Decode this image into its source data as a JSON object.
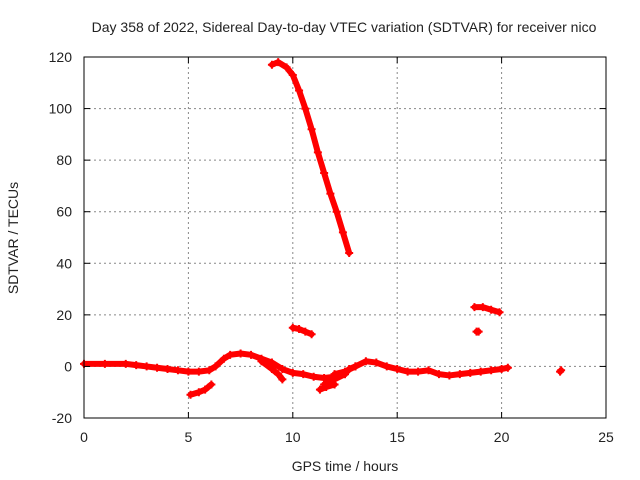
{
  "chart_data": {
    "type": "scatter",
    "title": "Day 358 of 2022, Sidereal Day-to-day VTEC variation (SDTVAR) for receiver nico",
    "xlabel": "GPS time / hours",
    "ylabel": "SDTVAR / TECUs",
    "xlim": [
      0,
      25
    ],
    "ylim": [
      -20,
      120
    ],
    "xticks": [
      0,
      5,
      10,
      15,
      20,
      25
    ],
    "yticks": [
      -20,
      0,
      20,
      40,
      60,
      80,
      100,
      120
    ],
    "grid": true,
    "marker": "+",
    "color": "#ff0000",
    "series": [
      {
        "name": "baseline",
        "segments": [
          [
            [
              0,
              1
            ],
            [
              1,
              1
            ],
            [
              2,
              1
            ],
            [
              2.5,
              0.5
            ],
            [
              3,
              0
            ],
            [
              3.5,
              -0.5
            ],
            [
              4,
              -1
            ],
            [
              4.5,
              -1.5
            ],
            [
              5,
              -2
            ],
            [
              5.5,
              -2
            ],
            [
              6,
              -1.5
            ],
            [
              6.3,
              0
            ],
            [
              6.7,
              3
            ],
            [
              7,
              4.5
            ],
            [
              7.5,
              5
            ],
            [
              8,
              4.5
            ],
            [
              8.5,
              3
            ],
            [
              9,
              1.5
            ],
            [
              9.5,
              -1
            ],
            [
              10,
              -2.5
            ],
            [
              10.5,
              -3
            ],
            [
              11,
              -4
            ],
            [
              11.5,
              -4.5
            ],
            [
              12,
              -4
            ],
            [
              12.5,
              -3
            ],
            [
              12.7,
              -1
            ],
            [
              13,
              0
            ],
            [
              13.5,
              2
            ],
            [
              14,
              1.5
            ],
            [
              14.5,
              0
            ],
            [
              15,
              -1
            ],
            [
              15.5,
              -2
            ],
            [
              16,
              -2
            ],
            [
              16.5,
              -1.5
            ],
            [
              17,
              -3
            ],
            [
              17.5,
              -3.5
            ],
            [
              18,
              -3
            ],
            [
              18.5,
              -2.5
            ],
            [
              19,
              -2
            ],
            [
              19.5,
              -1.5
            ],
            [
              20,
              -1
            ],
            [
              20.3,
              -0.5
            ]
          ]
        ]
      },
      {
        "name": "dips",
        "segments": [
          [
            [
              8.5,
              2
            ],
            [
              9,
              -1
            ],
            [
              9.3,
              -3
            ],
            [
              9.5,
              -5
            ]
          ],
          [
            [
              11.5,
              -7
            ],
            [
              12,
              -5
            ],
            [
              12.5,
              -3
            ]
          ],
          [
            [
              12,
              -3
            ],
            [
              12.5,
              -2
            ],
            [
              13,
              0
            ]
          ]
        ]
      },
      {
        "name": "negative arcs",
        "segments": [
          [
            [
              5.1,
              -11
            ],
            [
              5.5,
              -10
            ],
            [
              5.8,
              -9
            ],
            [
              6.1,
              -7
            ]
          ],
          [
            [
              11.3,
              -9
            ],
            [
              11.6,
              -8
            ],
            [
              12,
              -7
            ]
          ]
        ]
      },
      {
        "name": "spike",
        "segments": [
          [
            [
              9,
              117
            ],
            [
              9.3,
              118
            ],
            [
              9.7,
              116
            ],
            [
              10,
              113
            ],
            [
              10.3,
              107
            ],
            [
              10.6,
              100
            ],
            [
              10.9,
              92
            ],
            [
              11.2,
              83
            ],
            [
              11.5,
              75
            ],
            [
              11.8,
              67
            ],
            [
              12.1,
              60
            ],
            [
              12.4,
              52
            ],
            [
              12.7,
              44
            ]
          ]
        ]
      },
      {
        "name": "short arcs",
        "segments": [
          [
            [
              10,
              15
            ],
            [
              10.3,
              14.5
            ],
            [
              10.6,
              13.5
            ],
            [
              10.9,
              12.5
            ]
          ],
          [
            [
              18.7,
              23
            ],
            [
              19.1,
              23
            ],
            [
              19.5,
              22
            ],
            [
              19.9,
              21
            ]
          ],
          [
            [
              18.8,
              13.5
            ],
            [
              18.9,
              13.5
            ]
          ],
          [
            [
              22.8,
              -2
            ],
            [
              22.85,
              -1.5
            ]
          ]
        ]
      }
    ]
  }
}
